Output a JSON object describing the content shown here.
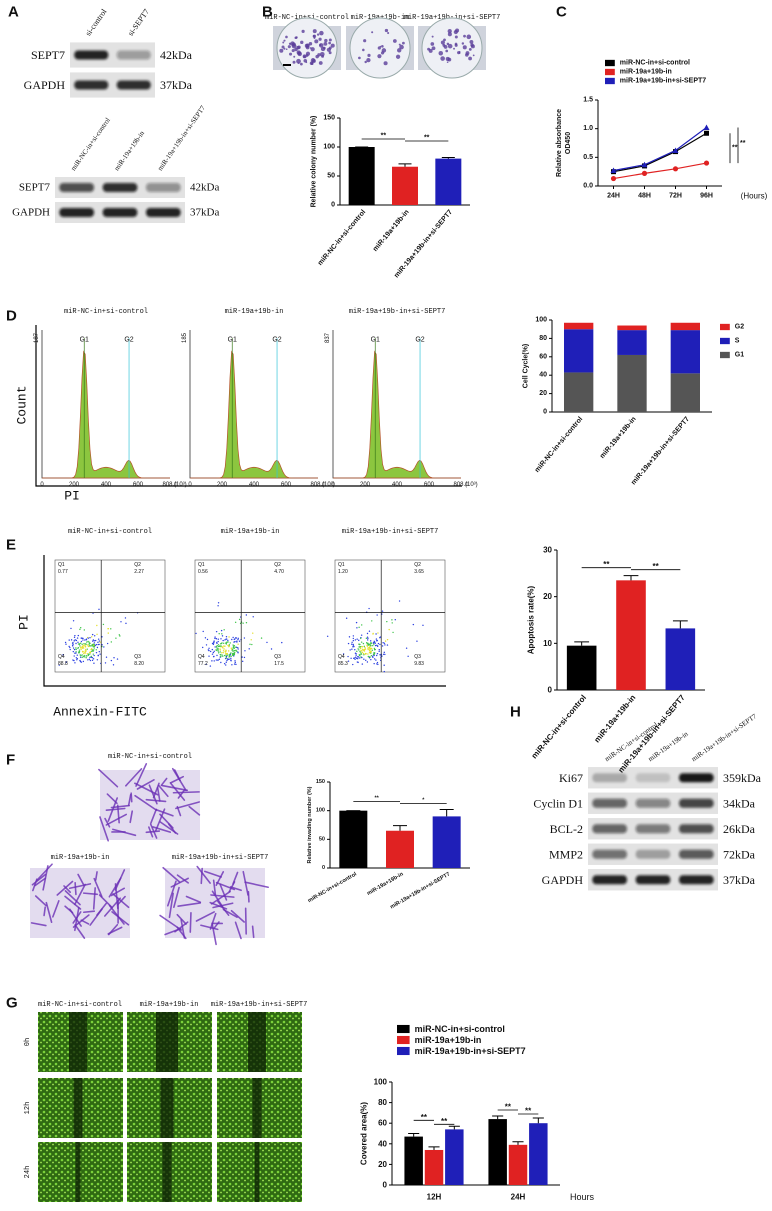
{
  "figure": {
    "panel_labels": [
      "A",
      "B",
      "C",
      "D",
      "E",
      "F",
      "G",
      "H"
    ],
    "blot_a_top": {
      "lanes": [
        "si-control",
        "si-SEPT7"
      ],
      "proteins": [
        "SEPT7",
        "GAPDH"
      ],
      "sizes": [
        "42kDa",
        "37kDa"
      ]
    },
    "blot_a_bottom": {
      "lanes": [
        "miR-NC-in+si-control",
        "miR-19a+19b-in",
        "miR-19a+19b-in+si-SEPT7"
      ],
      "proteins": [
        "SEPT7",
        "GAPDH"
      ],
      "sizes": [
        "42kDa",
        "37kDa"
      ]
    },
    "colony_b": {
      "titles": [
        "miR-NC-in+si-control",
        "miR-19a+19b-in",
        "miR-19a+19b-in+si-SEPT7"
      ]
    },
    "flow_d": {
      "titles": [
        "miR-NC-in+si-control",
        "miR-19a+19b-in",
        "miR-19a+19b-in+si-SEPT7"
      ],
      "ymax": [
        "187",
        "185",
        "837"
      ],
      "gates": [
        "G1",
        "G2"
      ],
      "xticks": [
        "0",
        "200",
        "400",
        "600",
        "808.1"
      ],
      "xunit": "(10³)",
      "xlabel": "PI",
      "ylabel": "Count"
    },
    "flow_e": {
      "titles": [
        "miR-NC-in+si-control",
        "miR-19a+19b-in",
        "miR-19a+19b-in+si-SEPT7"
      ],
      "quadrant_names": [
        "Q1",
        "Q2",
        "Q4",
        "Q3"
      ],
      "quadrant_values": [
        [
          "0.77",
          "2.27",
          "88.8",
          "8.20"
        ],
        [
          "0.56",
          "4.70",
          "77.2",
          "17.5"
        ],
        [
          "1.20",
          "3.65",
          "85.3",
          "9.83"
        ]
      ],
      "xlabel": "Annexin-FITC",
      "ylabel": "PI"
    },
    "invasion_f": {
      "titles": [
        "miR-NC-in+si-control",
        "miR-19a+19b-in",
        "miR-19a+19b-in+si-SEPT7"
      ]
    },
    "blot_h": {
      "lanes": [
        "miR-NC-in+si-control",
        "miR-19a+19b-in",
        "miR-19a+19b-in+si-SEPT7"
      ],
      "proteins": [
        "Ki67",
        "Cyclin D1",
        "BCL-2",
        "MMP2",
        "GAPDH"
      ],
      "sizes": [
        "359kDa",
        "34kDa",
        "26kDa",
        "72kDa",
        "37kDa"
      ]
    },
    "wound_g": {
      "titles": [
        "miR-NC-in+si-control",
        "miR-19a+19b-in",
        "miR-19a+19b-in+si-SEPT7"
      ],
      "times": [
        "0h",
        "12h",
        "24h"
      ]
    }
  },
  "chart_data": [
    {
      "type": "bar",
      "ylabel": [
        "Relative colony number (%)"
      ],
      "categories": [
        "miR-NC-in+si-control",
        "miR-19a+19b-in",
        "miR-19a+19b-in+si-SEPT7"
      ],
      "values": [
        100,
        66,
        80
      ],
      "errors": [
        0,
        5,
        2
      ],
      "colors": [
        "#000000",
        "#e02222",
        "#1f1fb8"
      ],
      "ylim": [
        0,
        150
      ],
      "yticks": [
        0,
        50,
        100,
        150
      ],
      "annotations": [
        "**",
        "**"
      ]
    },
    {
      "type": "line",
      "ylabel": [
        "Relative absorbance",
        "OD450"
      ],
      "xlabel": "(Hours)",
      "categories": [
        "24H",
        "48H",
        "72H",
        "96H"
      ],
      "ylim": [
        0,
        1.5
      ],
      "yticks": [
        {
          "value": 0,
          "label": "0.0"
        },
        {
          "value": 0.5,
          "label": "0.5"
        },
        {
          "value": 1,
          "label": "1.0"
        },
        {
          "value": 1.5,
          "label": "1.5"
        }
      ],
      "series": [
        {
          "name": "miR-NC-in+si-control",
          "color": "#000000",
          "values": [
            0.25,
            0.35,
            0.6,
            0.92
          ]
        },
        {
          "name": "miR-19a+19b-in",
          "color": "#e02222",
          "values": [
            0.13,
            0.22,
            0.3,
            0.4
          ]
        },
        {
          "name": "miR-19a+19b-in+si-SEPT7",
          "color": "#1f1fb8",
          "values": [
            0.27,
            0.37,
            0.62,
            1.02
          ]
        }
      ],
      "annotations": [
        "**",
        "**"
      ]
    },
    {
      "type": "stacked_bar",
      "ylabel": [
        "Cell Cycle(%)"
      ],
      "categories": [
        "miR-NC-in+si-control",
        "miR-19a+19b-in",
        "miR-19a+19b-in+si-SEPT7"
      ],
      "ylim": [
        0,
        100
      ],
      "yticks": [
        0,
        20,
        40,
        60,
        80,
        100
      ],
      "series": [
        {
          "name": "G1",
          "color": "#555555",
          "values": [
            43,
            62,
            42
          ]
        },
        {
          "name": "S",
          "color": "#1f1fb8",
          "values": [
            47,
            27,
            47
          ]
        },
        {
          "name": "G2",
          "color": "#e02222",
          "values": [
            7,
            5,
            8
          ]
        }
      ]
    },
    {
      "type": "bar",
      "ylabel": [
        "Apoptosis rate(%)"
      ],
      "categories": [
        "miR-NC-in+si-control",
        "miR-19a+19b-in",
        "miR-19a+19b-in+si-SEPT7"
      ],
      "values": [
        9.5,
        23.5,
        13.2
      ],
      "errors": [
        0.8,
        1.0,
        1.6
      ],
      "colors": [
        "#000000",
        "#e02222",
        "#1f1fb8"
      ],
      "ylim": [
        0,
        30
      ],
      "yticks": [
        0,
        10,
        20,
        30
      ],
      "annotations": [
        "**",
        "**"
      ]
    },
    {
      "type": "bar",
      "ylabel": [
        "Relative invading number (%)"
      ],
      "categories": [
        "miR-NC-in+si-control",
        "miR-19a+19b-in",
        "miR-19a+19b-in+si-SEPT7"
      ],
      "values": [
        100,
        65,
        90
      ],
      "errors": [
        0,
        9,
        12
      ],
      "colors": [
        "#000000",
        "#e02222",
        "#1f1fb8"
      ],
      "ylim": [
        0,
        150
      ],
      "yticks": [
        0,
        50,
        100,
        150
      ],
      "annotations": [
        "**",
        "*"
      ]
    },
    {
      "type": "grouped_bar",
      "ylabel": [
        "Covered area(%)"
      ],
      "xlabel": "Hours",
      "categories": [
        "12H",
        "24H"
      ],
      "ylim": [
        0,
        100
      ],
      "yticks": [
        0,
        20,
        40,
        60,
        80,
        100
      ],
      "series": [
        {
          "name": "miR-NC-in+si-control",
          "color": "#000000",
          "values": [
            47,
            64
          ],
          "errors": [
            3,
            3
          ]
        },
        {
          "name": "miR-19a+19b-in",
          "color": "#e02222",
          "values": [
            34,
            39
          ],
          "errors": [
            3,
            3
          ]
        },
        {
          "name": "miR-19a+19b-in+si-SEPT7",
          "color": "#1f1fb8",
          "values": [
            54,
            60
          ],
          "errors": [
            3,
            5
          ]
        }
      ],
      "annotations": [
        "**",
        "**",
        "**",
        "**"
      ]
    }
  ]
}
